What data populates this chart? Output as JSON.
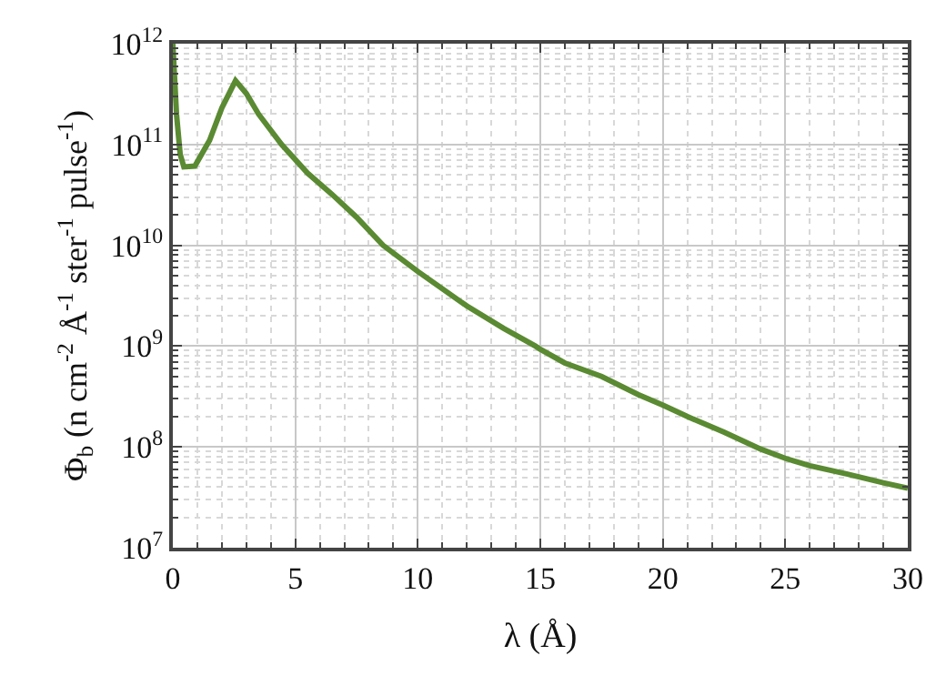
{
  "chart_data": {
    "type": "line",
    "xlabel": "λ (Å)",
    "ylabel": "Φ$_{b}$ (n cm$^{-2}$ Å$^{-1}$ ster$^{-1}$ pulse$^{-1}$)",
    "log": "y",
    "grid": true,
    "marker": "none",
    "line_style": "solid",
    "x": [
      0,
      0.15,
      0.3,
      0.45,
      0.9,
      1.5,
      2.0,
      2.56,
      3.0,
      3.5,
      4.44,
      5.5,
      6.5,
      7.5,
      8.58,
      10,
      12,
      13.5,
      14.8,
      15,
      16,
      17.5,
      19,
      20,
      21,
      22.5,
      24,
      25,
      26,
      27.5,
      29,
      30
    ],
    "series": [
      {
        "color": "#5a8a32",
        "values": [
          1000000000000.0,
          200000000000.0,
          80000000000.0,
          60000000000.0,
          61000000000.0,
          110000000000.0,
          230000000000.0,
          430000000000.0,
          320000000000.0,
          200000000000.0,
          100000000000.0,
          52000000000.0,
          32000000000.0,
          19000000000.0,
          10000000000.0,
          5500000000.0,
          2500000000.0,
          1500000000.0,
          1000000000.0,
          930000000.0,
          680000000.0,
          500000000.0,
          330000000.0,
          260000000.0,
          200000000.0,
          140000000.0,
          95000000.0,
          77000000.0,
          65000000.0,
          54000000.0,
          44000000.0,
          39000000.0
        ]
      }
    ],
    "xlim": [
      0,
      30
    ],
    "xticks": [
      0,
      5,
      10,
      15,
      20,
      25,
      30
    ],
    "ylim": [
      10000000.0,
      1000000000000.0
    ],
    "yticks": [
      {
        "value": 10000000.0,
        "label": "10$^{7}$"
      },
      {
        "value": 100000000.0,
        "label": "10$^{8}$"
      },
      {
        "value": 1000000000.0,
        "label": "10$^{9}$"
      },
      {
        "value": 10000000000.0,
        "label": "10$^{10}$"
      },
      {
        "value": 100000000000.0,
        "label": "10$^{11}$"
      },
      {
        "value": 1000000000000.0,
        "label": "10$^{12}$"
      }
    ]
  }
}
